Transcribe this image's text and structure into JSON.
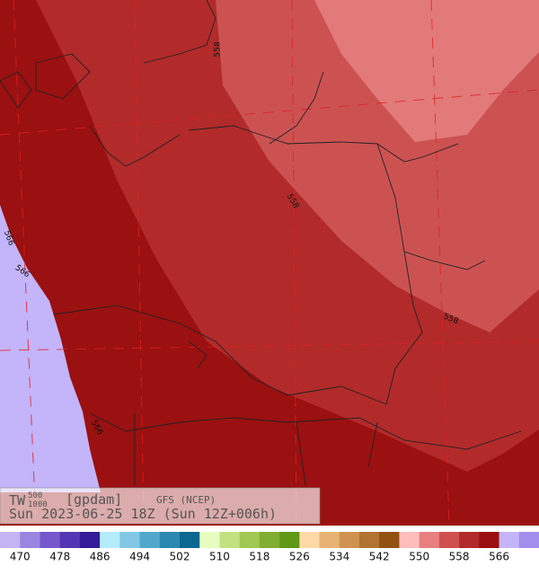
{
  "title": {
    "variable": "TW",
    "upper_level": "500",
    "lower_level": "1000",
    "unit": "[gpdam]",
    "model": "GFS (NCEP)",
    "valid_time": "Sun 2023-06-25 18Z (Sun 12Z+006h)"
  },
  "contour_labels": [
    "558",
    "558",
    "558",
    "566",
    "566",
    "566"
  ],
  "colorbar": {
    "colors": [
      "#c4b4f4",
      "#9a86e0",
      "#7658cc",
      "#5436b4",
      "#341a98",
      "#b4ecfa",
      "#82c8e6",
      "#52a8cc",
      "#2c88b0",
      "#0c6890",
      "#e8fcc0",
      "#c2e282",
      "#a0c852",
      "#80ae30",
      "#609818",
      "#ffd8a8",
      "#e6b274",
      "#d09250",
      "#b27230",
      "#925212",
      "#ffbcbc",
      "#e88080",
      "#d05050",
      "#b22a2a",
      "#9a1010",
      "#c4b4f8",
      "#a090ec"
    ],
    "ticks": [
      470,
      478,
      486,
      494,
      502,
      510,
      518,
      526,
      534,
      542,
      550,
      558,
      566
    ]
  }
}
